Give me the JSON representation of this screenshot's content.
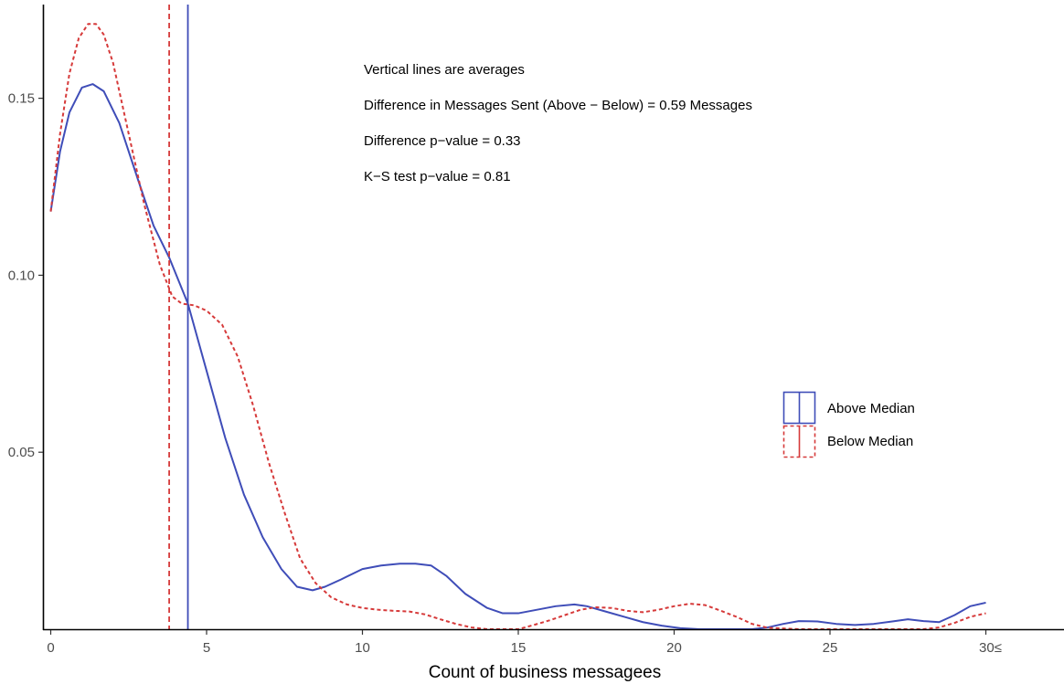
{
  "chart_data": {
    "type": "line",
    "title": "",
    "xlabel": "Count of business messagees",
    "ylabel": "",
    "xlim": [
      -0.2,
      32.5
    ],
    "ylim": [
      0,
      0.176
    ],
    "x_ticks": [
      0,
      5,
      10,
      15,
      20,
      25,
      30
    ],
    "x_tick_labels": [
      "0",
      "5",
      "10",
      "15",
      "20",
      "25",
      "30≤"
    ],
    "y_ticks": [
      0.05,
      0.1,
      0.15
    ],
    "y_tick_labels": [
      "0.05",
      "0.10",
      "0.15"
    ],
    "grid": false,
    "legend_position": "right",
    "annotations": [
      "Vertical lines are averages",
      "Difference in Messages Sent (Above − Below) = 0.59 Messages",
      "Difference p−value = 0.33",
      "K−S test p−value = 0.81"
    ],
    "series": [
      {
        "name": "Above Median",
        "color": "#3f4db8",
        "dash": "solid",
        "mean": 4.4,
        "x": [
          0,
          0.3,
          0.6,
          1.0,
          1.35,
          1.7,
          2.2,
          2.8,
          3.3,
          3.8,
          4.4,
          5.0,
          5.6,
          6.2,
          6.8,
          7.4,
          7.9,
          8.4,
          8.8,
          9.3,
          10.0,
          10.6,
          11.2,
          11.7,
          12.2,
          12.7,
          13.3,
          14.0,
          14.5,
          15.0,
          15.6,
          16.2,
          16.8,
          17.2,
          17.8,
          18.4,
          19.0,
          19.6,
          20.2,
          20.8,
          21.4,
          22.0,
          22.5,
          23.0,
          23.5,
          24.0,
          24.6,
          25.2,
          25.8,
          26.4,
          27.0,
          27.5,
          28.0,
          28.5,
          29.0,
          29.5,
          30.0
        ],
        "y": [
          0.118,
          0.135,
          0.146,
          0.153,
          0.154,
          0.152,
          0.143,
          0.127,
          0.114,
          0.105,
          0.092,
          0.073,
          0.054,
          0.038,
          0.026,
          0.017,
          0.012,
          0.011,
          0.012,
          0.014,
          0.017,
          0.018,
          0.0185,
          0.0185,
          0.018,
          0.015,
          0.01,
          0.006,
          0.0045,
          0.0045,
          0.0055,
          0.0065,
          0.007,
          0.0065,
          0.005,
          0.0035,
          0.002,
          0.001,
          0.0003,
          0.0,
          0.0,
          0.0,
          0.0,
          0.0005,
          0.0015,
          0.0023,
          0.0022,
          0.0015,
          0.0012,
          0.0015,
          0.0022,
          0.0028,
          0.0023,
          0.002,
          0.004,
          0.0065,
          0.0075
        ]
      },
      {
        "name": "Below Median",
        "color": "#d63a3a",
        "dash": "dashed",
        "mean": 3.8,
        "x": [
          0,
          0.3,
          0.6,
          0.9,
          1.2,
          1.45,
          1.7,
          2.0,
          2.5,
          3.0,
          3.5,
          3.9,
          4.2,
          4.6,
          5.0,
          5.5,
          6.0,
          6.5,
          7.0,
          7.5,
          8.0,
          8.5,
          9.0,
          9.5,
          10.0,
          10.5,
          11.0,
          11.5,
          12.0,
          12.5,
          13.0,
          13.5,
          14.0,
          14.5,
          15.0,
          15.5,
          16.0,
          16.5,
          17.0,
          17.5,
          18.0,
          18.5,
          19.0,
          19.5,
          20.0,
          20.5,
          21.0,
          21.5,
          22.0,
          22.5,
          23.0,
          24.0,
          25.0,
          26.0,
          27.0,
          28.0,
          28.5,
          29.0,
          29.5,
          30.0
        ],
        "y": [
          0.118,
          0.14,
          0.157,
          0.167,
          0.171,
          0.171,
          0.168,
          0.16,
          0.14,
          0.12,
          0.103,
          0.094,
          0.092,
          0.0915,
          0.09,
          0.086,
          0.077,
          0.063,
          0.047,
          0.033,
          0.02,
          0.013,
          0.009,
          0.007,
          0.006,
          0.0055,
          0.0052,
          0.005,
          0.0042,
          0.0028,
          0.0015,
          0.0005,
          0.0,
          0.0,
          0.0,
          0.0012,
          0.0025,
          0.004,
          0.0055,
          0.0062,
          0.006,
          0.0052,
          0.0048,
          0.0055,
          0.0065,
          0.0072,
          0.0068,
          0.0052,
          0.0035,
          0.0015,
          0.0004,
          0.0,
          0.0,
          0.0,
          0.0,
          0.0,
          0.0005,
          0.0018,
          0.0035,
          0.0045
        ]
      }
    ]
  }
}
